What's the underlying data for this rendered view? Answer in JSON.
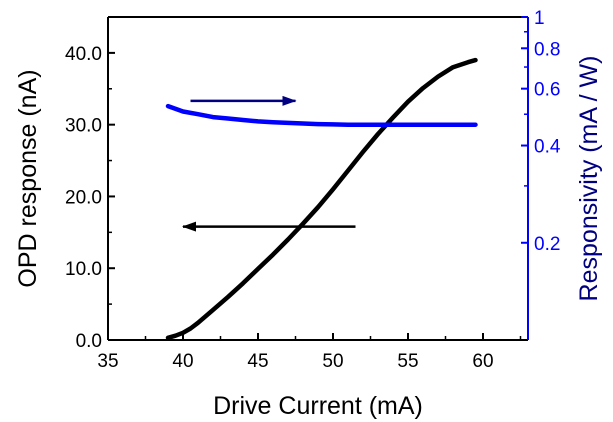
{
  "chart_data": {
    "type": "line",
    "title": "",
    "xlabel": "Drive Current (mA)",
    "ylabel": "OPD response (nA)",
    "y2label": "Responsivity (mA / W)",
    "xlim": [
      35,
      63
    ],
    "ylim": [
      0,
      45
    ],
    "y2lim": [
      0.1,
      1
    ],
    "y2scale": "log",
    "xticks": [
      "35",
      "40",
      "45",
      "50",
      "55",
      "60"
    ],
    "yticks": [
      "0.0",
      "10.0",
      "20.0",
      "30.0",
      "40.0"
    ],
    "y2ticks": [
      "0.2",
      "0.4",
      "0.6",
      "0.8",
      "1"
    ],
    "grid": false,
    "series": [
      {
        "name": "",
        "axis": "left",
        "color": "#000000",
        "x": [
          39.0,
          39.5,
          40.0,
          40.5,
          41.0,
          42.0,
          43.0,
          44.0,
          45.0,
          46.0,
          47.0,
          48.0,
          49.0,
          50.0,
          51.0,
          52.0,
          53.0,
          54.0,
          55.0,
          56.0,
          57.0,
          58.0,
          59.0,
          59.5
        ],
        "values": [
          0.3,
          0.6,
          1.0,
          1.6,
          2.4,
          4.2,
          6.0,
          7.9,
          9.9,
          11.9,
          14.0,
          16.2,
          18.5,
          21.0,
          23.6,
          26.2,
          28.7,
          31.0,
          33.2,
          35.1,
          36.7,
          38.0,
          38.7,
          39.0
        ]
      },
      {
        "name": "",
        "axis": "right",
        "color": "#0000ff",
        "x": [
          39.0,
          40.0,
          41.0,
          42.0,
          43.0,
          44.0,
          45.0,
          46.0,
          47.0,
          48.0,
          49.0,
          50.0,
          51.0,
          52.0,
          53.0,
          54.0,
          55.0,
          56.0,
          57.0,
          58.0,
          59.0,
          59.5
        ],
        "values": [
          0.53,
          0.51,
          0.5,
          0.49,
          0.485,
          0.48,
          0.475,
          0.472,
          0.47,
          0.468,
          0.466,
          0.465,
          0.464,
          0.464,
          0.464,
          0.464,
          0.464,
          0.464,
          0.464,
          0.464,
          0.464,
          0.464
        ]
      }
    ],
    "annotations": [
      {
        "type": "arrow",
        "points_to": "right-axis",
        "color": "#000080",
        "x_from": 40.5,
        "x_to": 47.5,
        "axis": "right",
        "y": 0.55
      },
      {
        "type": "arrow",
        "points_to": "left-axis",
        "color": "#000000",
        "x_from": 51.5,
        "x_to": 40.0,
        "axis": "left",
        "y": 15.8
      }
    ]
  },
  "colors": {
    "left_axis": "#000000",
    "right_axis": "#0000ff",
    "right_label": "#000080"
  }
}
